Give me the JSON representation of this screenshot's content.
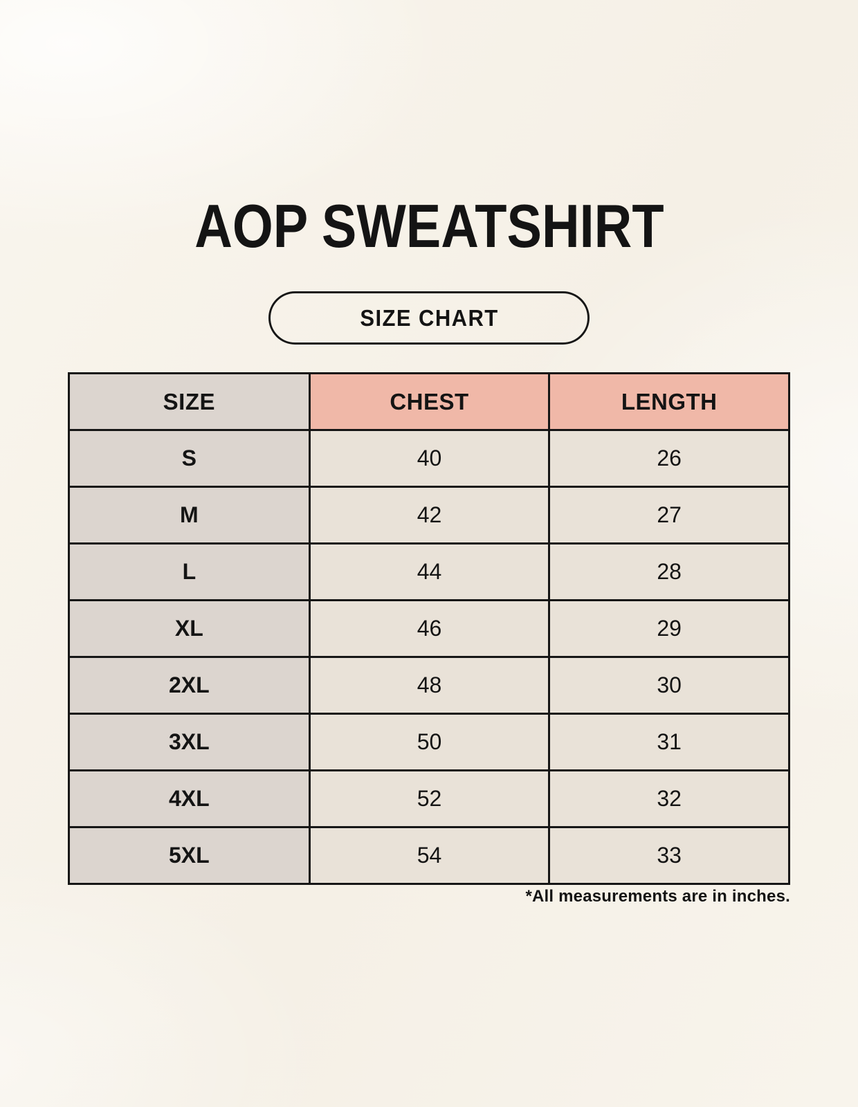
{
  "title": "AOP SWEATSHIRT",
  "badge": {
    "label": "SIZE CHART"
  },
  "table": {
    "columns": [
      "SIZE",
      "CHEST",
      "LENGTH"
    ],
    "rows": [
      [
        "S",
        "40",
        "26"
      ],
      [
        "M",
        "42",
        "27"
      ],
      [
        "L",
        "44",
        "28"
      ],
      [
        "XL",
        "46",
        "29"
      ],
      [
        "2XL",
        "48",
        "30"
      ],
      [
        "3XL",
        "50",
        "31"
      ],
      [
        "4XL",
        "52",
        "32"
      ],
      [
        "5XL",
        "54",
        "33"
      ]
    ]
  },
  "footnote": "*All measurements are in inches.",
  "colors": {
    "page_bg": "#f7f3ea",
    "size_column_bg": "#dcd5cf",
    "header_accent_bg": "#f0b8a8",
    "data_cell_bg": "#e9e2d8",
    "border": "#161616",
    "text": "#141414"
  }
}
